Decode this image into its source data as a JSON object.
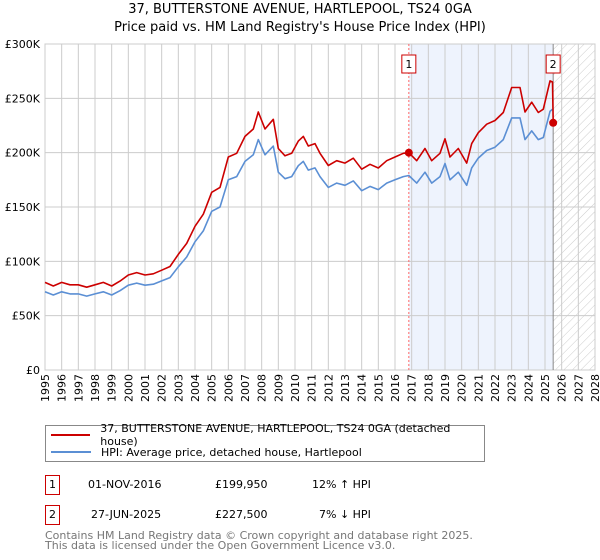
{
  "chart_data": {
    "type": "line",
    "title": "37, BUTTERSTONE AVENUE, HARTLEPOOL, TS24 0GA",
    "subtitle": "Price paid vs. HM Land Registry's House Price Index (HPI)",
    "xlim": [
      1995,
      2028
    ],
    "ylim": [
      0,
      300000
    ],
    "x_ticks": [
      "1995",
      "1996",
      "1997",
      "1998",
      "1999",
      "2000",
      "2001",
      "2002",
      "2003",
      "2004",
      "2005",
      "2006",
      "2007",
      "2008",
      "2009",
      "2010",
      "2011",
      "2012",
      "2013",
      "2014",
      "2015",
      "2016",
      "2017",
      "2018",
      "2019",
      "2020",
      "2021",
      "2022",
      "2023",
      "2024",
      "2025",
      "2026",
      "2027",
      "2028"
    ],
    "y_ticks": [
      {
        "v": 0,
        "label": "£0"
      },
      {
        "v": 50000,
        "label": "£50K"
      },
      {
        "v": 100000,
        "label": "£100K"
      },
      {
        "v": 150000,
        "label": "£150K"
      },
      {
        "v": 200000,
        "label": "£200K"
      },
      {
        "v": 250000,
        "label": "£250K"
      },
      {
        "v": 300000,
        "label": "£300K"
      }
    ],
    "grid": true,
    "series": [
      {
        "name": "37, BUTTERSTONE AVENUE, HARTLEPOOL, TS24 0GA (detached house)",
        "color": "#cc0000",
        "x": [
          1995.0,
          1995.5,
          1996.0,
          1996.5,
          1997.0,
          1997.5,
          1998.0,
          1998.5,
          1999.0,
          1999.5,
          2000.0,
          2000.5,
          2001.0,
          2001.5,
          2002.0,
          2002.5,
          2003.0,
          2003.5,
          2004.0,
          2004.5,
          2005.0,
          2005.5,
          2006.0,
          2006.5,
          2007.0,
          2007.5,
          2007.8,
          2008.2,
          2008.7,
          2009.0,
          2009.4,
          2009.8,
          2010.2,
          2010.5,
          2010.8,
          2011.2,
          2011.5,
          2012.0,
          2012.5,
          2013.0,
          2013.5,
          2014.0,
          2014.5,
          2015.0,
          2015.5,
          2016.0,
          2016.5,
          2016.83,
          2017.3,
          2017.8,
          2018.2,
          2018.7,
          2019.0,
          2019.3,
          2019.8,
          2020.3,
          2020.6,
          2021.0,
          2021.5,
          2022.0,
          2022.5,
          2023.0,
          2023.5,
          2023.8,
          2024.2,
          2024.6,
          2024.9,
          2025.3,
          2025.45,
          2025.49
        ],
        "values": [
          80600,
          77300,
          80600,
          78400,
          78400,
          76200,
          78400,
          80600,
          77300,
          81800,
          87400,
          89600,
          87400,
          88500,
          91800,
          95200,
          106400,
          116500,
          132200,
          143400,
          163500,
          168000,
          196000,
          199400,
          215000,
          221800,
          237400,
          221800,
          230700,
          203800,
          197100,
          199400,
          210600,
          215000,
          206100,
          208300,
          199400,
          188200,
          192600,
          190400,
          194900,
          184800,
          189300,
          185900,
          192600,
          196000,
          199400,
          199950,
          192600,
          203800,
          192600,
          199400,
          212800,
          196000,
          203800,
          190400,
          208300,
          218400,
          226200,
          229600,
          237000,
          260000,
          260000,
          237400,
          246400,
          237000,
          240000,
          266000,
          265000,
          227500
        ]
      },
      {
        "name": "HPI: Average price, detached house, Hartlepool",
        "color": "#5b8fd4",
        "x": [
          1995.0,
          1995.5,
          1996.0,
          1996.5,
          1997.0,
          1997.5,
          1998.0,
          1998.5,
          1999.0,
          1999.5,
          2000.0,
          2000.5,
          2001.0,
          2001.5,
          2002.0,
          2002.5,
          2003.0,
          2003.5,
          2004.0,
          2004.5,
          2005.0,
          2005.5,
          2006.0,
          2006.5,
          2007.0,
          2007.5,
          2007.8,
          2008.2,
          2008.7,
          2009.0,
          2009.4,
          2009.8,
          2010.2,
          2010.5,
          2010.8,
          2011.2,
          2011.5,
          2012.0,
          2012.5,
          2013.0,
          2013.5,
          2014.0,
          2014.5,
          2015.0,
          2015.5,
          2016.0,
          2016.5,
          2016.83,
          2017.3,
          2017.8,
          2018.2,
          2018.7,
          2019.0,
          2019.3,
          2019.8,
          2020.3,
          2020.6,
          2021.0,
          2021.5,
          2022.0,
          2022.5,
          2023.0,
          2023.5,
          2023.8,
          2024.2,
          2024.6,
          2024.9,
          2025.3,
          2025.45
        ],
        "values": [
          72000,
          69000,
          72000,
          70000,
          70000,
          68000,
          70000,
          72000,
          69000,
          73000,
          78000,
          80000,
          78000,
          79000,
          82000,
          85000,
          95000,
          104000,
          118000,
          128000,
          146000,
          150000,
          175000,
          178000,
          192000,
          198000,
          212000,
          198000,
          206000,
          182000,
          176000,
          178000,
          188000,
          192000,
          184000,
          186000,
          178000,
          168000,
          172000,
          170000,
          174000,
          165000,
          169000,
          166000,
          172000,
          175000,
          178000,
          179000,
          172000,
          182000,
          172000,
          178000,
          190000,
          175000,
          182000,
          170000,
          186000,
          195000,
          202000,
          205000,
          212000,
          232000,
          232000,
          212000,
          220000,
          212000,
          214000,
          238000,
          240000
        ]
      }
    ],
    "sales": [
      {
        "label": "1",
        "x": 2016.83,
        "value": 199950
      },
      {
        "label": "2",
        "x": 2025.49,
        "value": 227500
      }
    ],
    "shaded_region": [
      2016.83,
      2025.49
    ],
    "hatched_from": 2025.49,
    "legend_placement": "below"
  },
  "table": [
    {
      "num": "1",
      "date": "01-NOV-2016",
      "price": "£199,950",
      "hpi": "12% ↑ HPI"
    },
    {
      "num": "2",
      "date": "27-JUN-2025",
      "price": "£227,500",
      "hpi": "7% ↓ HPI"
    }
  ],
  "footer": [
    "Contains HM Land Registry data © Crown copyright and database right 2025.",
    "This data is licensed under the Open Government Licence v3.0."
  ]
}
